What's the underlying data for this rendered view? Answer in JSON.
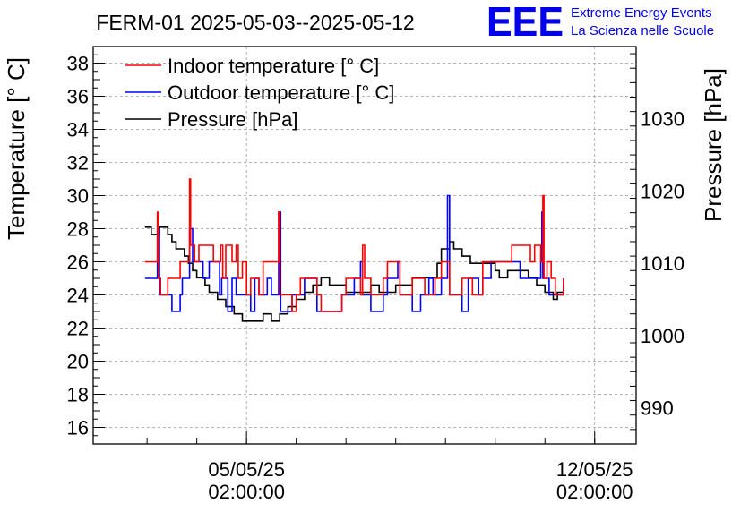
{
  "logo": {
    "mark": "EEE",
    "line1": "Extreme Energy Events",
    "line2": "La Scienza nelle Scuole",
    "color": "#0000ee"
  },
  "chart_data": {
    "type": "line",
    "title": "FERM-01 2025-05-03--2025-05-12",
    "ylabel": "Temperature [° C]",
    "y2label": "Pressure [hPa]",
    "xlim": [
      "2025-05-02T00:00",
      "2025-05-12T22:00"
    ],
    "ylim": [
      15,
      39
    ],
    "y2lim": [
      985,
      1040
    ],
    "xticks": [
      {
        "x": "2025-05-05T02:00",
        "date": "05/05/25",
        "time": "02:00:00"
      },
      {
        "x": "2025-05-12T02:00",
        "date": "12/05/25",
        "time": "02:00:00"
      }
    ],
    "yticks": [
      16,
      18,
      20,
      22,
      24,
      26,
      28,
      30,
      32,
      34,
      36,
      38
    ],
    "y2ticks": [
      990,
      1000,
      1010,
      1020,
      1030
    ],
    "grid": true,
    "legend_position": "top-left",
    "series": [
      {
        "name": "Indoor temperature [° C]",
        "axis": "left",
        "color": "#ff0000",
        "points": [
          [
            "2025-05-03T01:00",
            26
          ],
          [
            "2025-05-03T06:00",
            26
          ],
          [
            "2025-05-03T07:00",
            29
          ],
          [
            "2025-05-03T07:30",
            25
          ],
          [
            "2025-05-03T08:30",
            24
          ],
          [
            "2025-05-03T11:00",
            24
          ],
          [
            "2025-05-03T12:00",
            25
          ],
          [
            "2025-05-03T17:00",
            25
          ],
          [
            "2025-05-03T18:00",
            26
          ],
          [
            "2025-05-03T22:00",
            26
          ],
          [
            "2025-05-03T22:30",
            31
          ],
          [
            "2025-05-03T23:00",
            27
          ],
          [
            "2025-05-04T01:00",
            26
          ],
          [
            "2025-05-04T03:00",
            27
          ],
          [
            "2025-05-04T09:00",
            27
          ],
          [
            "2025-05-04T10:00",
            26
          ],
          [
            "2025-05-04T13:00",
            26
          ],
          [
            "2025-05-04T13:30",
            27
          ],
          [
            "2025-05-04T14:30",
            25
          ],
          [
            "2025-05-04T16:00",
            27
          ],
          [
            "2025-05-04T19:00",
            26
          ],
          [
            "2025-05-04T21:00",
            27
          ],
          [
            "2025-05-04T22:00",
            25
          ],
          [
            "2025-05-05T00:00",
            26
          ],
          [
            "2025-05-05T02:00",
            24
          ],
          [
            "2025-05-05T04:00",
            25
          ],
          [
            "2025-05-05T08:00",
            24
          ],
          [
            "2025-05-05T10:00",
            26
          ],
          [
            "2025-05-05T17:00",
            26
          ],
          [
            "2025-05-05T17:30",
            29
          ],
          [
            "2025-05-05T18:00",
            24
          ],
          [
            "2025-05-05T22:00",
            24
          ],
          [
            "2025-05-06T00:00",
            23
          ],
          [
            "2025-05-06T02:00",
            24
          ],
          [
            "2025-05-06T04:00",
            25
          ],
          [
            "2025-05-06T10:00",
            25
          ],
          [
            "2025-05-06T12:00",
            24
          ],
          [
            "2025-05-06T14:00",
            23
          ],
          [
            "2025-05-06T22:00",
            23
          ],
          [
            "2025-05-07T00:00",
            24
          ],
          [
            "2025-05-07T02:00",
            25
          ],
          [
            "2025-05-07T08:00",
            25
          ],
          [
            "2025-05-07T09:00",
            24
          ],
          [
            "2025-05-07T10:00",
            27
          ],
          [
            "2025-05-07T11:00",
            25
          ],
          [
            "2025-05-07T14:00",
            24
          ],
          [
            "2025-05-07T18:00",
            24
          ],
          [
            "2025-05-07T20:00",
            25
          ],
          [
            "2025-05-07T22:00",
            26
          ],
          [
            "2025-05-08T03:00",
            26
          ],
          [
            "2025-05-08T04:00",
            24
          ],
          [
            "2025-05-08T08:00",
            24
          ],
          [
            "2025-05-08T10:00",
            25
          ],
          [
            "2025-05-08T14:00",
            25
          ],
          [
            "2025-05-08T16:00",
            24
          ],
          [
            "2025-05-08T19:00",
            24
          ],
          [
            "2025-05-08T21:00",
            25
          ],
          [
            "2025-05-09T00:00",
            26
          ],
          [
            "2025-05-09T03:00",
            26
          ],
          [
            "2025-05-09T04:00",
            24
          ],
          [
            "2025-05-09T08:00",
            24
          ],
          [
            "2025-05-09T10:00",
            25
          ],
          [
            "2025-05-09T13:00",
            25
          ],
          [
            "2025-05-09T15:00",
            24
          ],
          [
            "2025-05-09T18:00",
            24
          ],
          [
            "2025-05-09T20:00",
            26
          ],
          [
            "2025-05-10T08:00",
            26
          ],
          [
            "2025-05-10T10:00",
            27
          ],
          [
            "2025-05-10T18:00",
            27
          ],
          [
            "2025-05-10T19:00",
            26
          ],
          [
            "2025-05-10T21:00",
            27
          ],
          [
            "2025-05-11T00:00",
            26
          ],
          [
            "2025-05-11T01:00",
            30
          ],
          [
            "2025-05-11T01:30",
            25
          ],
          [
            "2025-05-11T03:00",
            26
          ],
          [
            "2025-05-11T05:00",
            25
          ],
          [
            "2025-05-11T07:00",
            24
          ],
          [
            "2025-05-11T10:00",
            24
          ],
          [
            "2025-05-11T11:00",
            25
          ]
        ]
      },
      {
        "name": "Outdoor temperature [° C]",
        "axis": "left",
        "color": "#0000ff",
        "points": [
          [
            "2025-05-03T01:00",
            25
          ],
          [
            "2025-05-03T06:00",
            25
          ],
          [
            "2025-05-03T07:00",
            28
          ],
          [
            "2025-05-03T08:00",
            24
          ],
          [
            "2025-05-03T12:00",
            24
          ],
          [
            "2025-05-03T14:00",
            23
          ],
          [
            "2025-05-03T17:00",
            23
          ],
          [
            "2025-05-03T18:00",
            24
          ],
          [
            "2025-05-03T19:00",
            25
          ],
          [
            "2025-05-03T22:00",
            25
          ],
          [
            "2025-05-03T22:30",
            28
          ],
          [
            "2025-05-04T00:00",
            26
          ],
          [
            "2025-05-04T03:00",
            26
          ],
          [
            "2025-05-04T05:00",
            25
          ],
          [
            "2025-05-04T08:00",
            26
          ],
          [
            "2025-05-04T12:00",
            26
          ],
          [
            "2025-05-04T13:00",
            24
          ],
          [
            "2025-05-04T14:00",
            25
          ],
          [
            "2025-05-04T16:00",
            25
          ],
          [
            "2025-05-04T17:00",
            23
          ],
          [
            "2025-05-04T19:00",
            25
          ],
          [
            "2025-05-04T21:00",
            24
          ],
          [
            "2025-05-05T00:00",
            24
          ],
          [
            "2025-05-05T03:00",
            24
          ],
          [
            "2025-05-05T04:00",
            23
          ],
          [
            "2025-05-05T06:00",
            25
          ],
          [
            "2025-05-05T08:00",
            24
          ],
          [
            "2025-05-05T10:00",
            24
          ],
          [
            "2025-05-05T12:00",
            25
          ],
          [
            "2025-05-05T14:00",
            24
          ],
          [
            "2025-05-05T17:00",
            24
          ],
          [
            "2025-05-05T17:30",
            29
          ],
          [
            "2025-05-05T18:30",
            23
          ],
          [
            "2025-05-05T22:00",
            23
          ],
          [
            "2025-05-06T00:00",
            24
          ],
          [
            "2025-05-06T04:00",
            24
          ],
          [
            "2025-05-06T06:00",
            25
          ],
          [
            "2025-05-06T10:00",
            25
          ],
          [
            "2025-05-06T12:00",
            23
          ],
          [
            "2025-05-06T22:00",
            23
          ],
          [
            "2025-05-07T00:00",
            24
          ],
          [
            "2025-05-07T04:00",
            24
          ],
          [
            "2025-05-07T06:00",
            25
          ],
          [
            "2025-05-07T08:00",
            25
          ],
          [
            "2025-05-07T09:00",
            26
          ],
          [
            "2025-05-07T10:00",
            24
          ],
          [
            "2025-05-07T14:00",
            23
          ],
          [
            "2025-05-07T18:00",
            23
          ],
          [
            "2025-05-07T20:00",
            24
          ],
          [
            "2025-05-07T22:00",
            25
          ],
          [
            "2025-05-08T02:00",
            25
          ],
          [
            "2025-05-08T03:00",
            26
          ],
          [
            "2025-05-08T04:00",
            24
          ],
          [
            "2025-05-08T08:00",
            24
          ],
          [
            "2025-05-08T10:00",
            23
          ],
          [
            "2025-05-08T14:00",
            24
          ],
          [
            "2025-05-08T18:00",
            25
          ],
          [
            "2025-05-08T20:00",
            24
          ],
          [
            "2025-05-09T00:00",
            25
          ],
          [
            "2025-05-09T02:00",
            25
          ],
          [
            "2025-05-09T03:00",
            30
          ],
          [
            "2025-05-09T04:00",
            24
          ],
          [
            "2025-05-09T08:00",
            24
          ],
          [
            "2025-05-09T10:00",
            23
          ],
          [
            "2025-05-09T13:00",
            25
          ],
          [
            "2025-05-09T16:00",
            25
          ],
          [
            "2025-05-09T18:00",
            24
          ],
          [
            "2025-05-09T20:00",
            25
          ],
          [
            "2025-05-10T00:00",
            26
          ],
          [
            "2025-05-10T12:00",
            26
          ],
          [
            "2025-05-10T14:00",
            25
          ],
          [
            "2025-05-10T20:00",
            25
          ],
          [
            "2025-05-11T00:00",
            26
          ],
          [
            "2025-05-11T00:30",
            29
          ],
          [
            "2025-05-11T01:00",
            25
          ],
          [
            "2025-05-11T03:00",
            25
          ],
          [
            "2025-05-11T04:00",
            24
          ],
          [
            "2025-05-11T10:00",
            24
          ],
          [
            "2025-05-11T11:00",
            25
          ]
        ]
      },
      {
        "name": "Pressure [hPa]",
        "axis": "right",
        "color": "#000000",
        "points": [
          [
            "2025-05-03T01:00",
            1015
          ],
          [
            "2025-05-03T03:00",
            1015
          ],
          [
            "2025-05-03T04:00",
            1014
          ],
          [
            "2025-05-03T07:00",
            1014
          ],
          [
            "2025-05-03T08:00",
            1015
          ],
          [
            "2025-05-03T11:00",
            1015
          ],
          [
            "2025-05-03T12:00",
            1014
          ],
          [
            "2025-05-03T14:00",
            1013
          ],
          [
            "2025-05-03T16:00",
            1012
          ],
          [
            "2025-05-03T18:00",
            1012
          ],
          [
            "2025-05-03T20:00",
            1011
          ],
          [
            "2025-05-03T22:00",
            1010
          ],
          [
            "2025-05-04T00:00",
            1009
          ],
          [
            "2025-05-04T02:00",
            1008
          ],
          [
            "2025-05-04T06:00",
            1007
          ],
          [
            "2025-05-04T08:00",
            1006
          ],
          [
            "2025-05-04T12:00",
            1005
          ],
          [
            "2025-05-04T16:00",
            1004
          ],
          [
            "2025-05-04T20:00",
            1003
          ],
          [
            "2025-05-05T00:00",
            1002
          ],
          [
            "2025-05-05T06:00",
            1002
          ],
          [
            "2025-05-05T10:00",
            1003
          ],
          [
            "2025-05-05T14:00",
            1002
          ],
          [
            "2025-05-05T18:00",
            1003
          ],
          [
            "2025-05-05T22:00",
            1004
          ],
          [
            "2025-05-06T02:00",
            1005
          ],
          [
            "2025-05-06T06:00",
            1006
          ],
          [
            "2025-05-06T10:00",
            1007
          ],
          [
            "2025-05-06T14:00",
            1008
          ],
          [
            "2025-05-06T18:00",
            1007
          ],
          [
            "2025-05-06T22:00",
            1007
          ],
          [
            "2025-05-07T02:00",
            1006
          ],
          [
            "2025-05-07T10:00",
            1006
          ],
          [
            "2025-05-07T14:00",
            1007
          ],
          [
            "2025-05-07T18:00",
            1006
          ],
          [
            "2025-05-08T02:00",
            1007
          ],
          [
            "2025-05-08T08:00",
            1007
          ],
          [
            "2025-05-08T10:00",
            1008
          ],
          [
            "2025-05-08T18:00",
            1008
          ],
          [
            "2025-05-08T22:00",
            1010
          ],
          [
            "2025-05-09T00:00",
            1012
          ],
          [
            "2025-05-09T04:00",
            1013
          ],
          [
            "2025-05-09T06:00",
            1012
          ],
          [
            "2025-05-09T10:00",
            1011
          ],
          [
            "2025-05-09T14:00",
            1010
          ],
          [
            "2025-05-09T22:00",
            1010
          ],
          [
            "2025-05-10T02:00",
            1009
          ],
          [
            "2025-05-10T04:00",
            1008
          ],
          [
            "2025-05-10T08:00",
            1009
          ],
          [
            "2025-05-10T14:00",
            1009
          ],
          [
            "2025-05-10T18:00",
            1008
          ],
          [
            "2025-05-10T22:00",
            1007
          ],
          [
            "2025-05-11T02:00",
            1006
          ],
          [
            "2025-05-11T06:00",
            1005
          ],
          [
            "2025-05-11T08:00",
            1006
          ],
          [
            "2025-05-11T11:00",
            1007
          ]
        ]
      }
    ]
  }
}
